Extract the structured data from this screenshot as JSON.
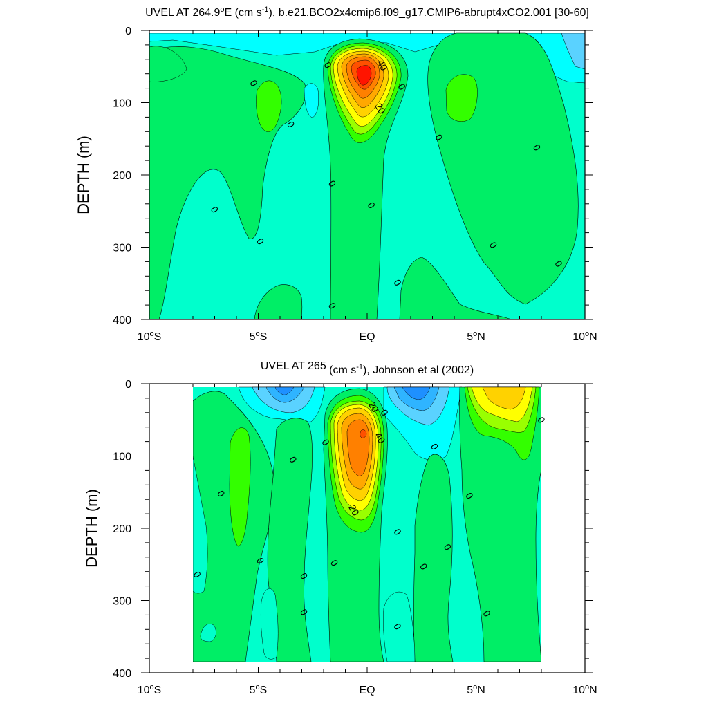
{
  "chart_data": [
    {
      "type": "heatmap",
      "title_prefix": "UVEL AT 264.9",
      "title_degree_sup": "o",
      "title_mid": "E (cm s",
      "title_unit_sup": "-1",
      "title_suffix": "), b.e21.BCO2x4cmip6.f09_g17.CMIP6-abrupt4xCO2.001 [30-60]",
      "ylabel": "DEPTH (m)",
      "xlabel": "",
      "xlim": [
        -10,
        10
      ],
      "ylim": [
        400,
        0
      ],
      "x_ticks": [
        {
          "value": -10,
          "num": "10",
          "sup": "o",
          "hemi": "S"
        },
        {
          "value": -5,
          "num": "5",
          "sup": "o",
          "hemi": "S"
        },
        {
          "value": 0,
          "num": "EQ",
          "sup": "",
          "hemi": ""
        },
        {
          "value": 5,
          "num": "5",
          "sup": "o",
          "hemi": "N"
        },
        {
          "value": 10,
          "num": "10",
          "sup": "o",
          "hemi": "N"
        }
      ],
      "y_ticks": [
        "0",
        "100",
        "200",
        "300",
        "400"
      ],
      "y_tick_values": [
        0,
        100,
        200,
        300,
        400
      ],
      "contour_interval": 5,
      "data_extent_lat": [
        -10,
        10
      ],
      "data_depth_range": [
        5,
        400
      ],
      "contour_labels": [
        {
          "text": "40",
          "lat": 0.7,
          "depth": 48
        },
        {
          "text": "20",
          "lat": 0.6,
          "depth": 108
        },
        {
          "text": "0",
          "lat": -5.2,
          "depth": 73
        },
        {
          "text": "0",
          "lat": -1.8,
          "depth": 48
        },
        {
          "text": "0",
          "lat": -3.5,
          "depth": 130
        },
        {
          "text": "0",
          "lat": 1.6,
          "depth": 78
        },
        {
          "text": "0",
          "lat": -7.0,
          "depth": 248
        },
        {
          "text": "0",
          "lat": -4.9,
          "depth": 292
        },
        {
          "text": "0",
          "lat": -1.6,
          "depth": 212
        },
        {
          "text": "0",
          "lat": 0.2,
          "depth": 242
        },
        {
          "text": "0",
          "lat": 3.3,
          "depth": 148
        },
        {
          "text": "0",
          "lat": 7.8,
          "depth": 162
        },
        {
          "text": "0",
          "lat": 5.8,
          "depth": 297
        },
        {
          "text": "0",
          "lat": 8.8,
          "depth": 323
        },
        {
          "text": "0",
          "lat": 1.4,
          "depth": 349
        },
        {
          "text": "0",
          "lat": -1.6,
          "depth": 381
        }
      ]
    },
    {
      "type": "heatmap",
      "title_prefix": "UVEL AT 265",
      "title_degree_sup": "",
      "title_mid": " (cm s",
      "title_unit_sup": "-1",
      "title_suffix": "), Johnson et al (2002)",
      "ylabel": "DEPTH (m)",
      "xlabel": "",
      "xlim": [
        -10,
        10
      ],
      "ylim": [
        400,
        0
      ],
      "x_ticks": [
        {
          "value": -10,
          "num": "10",
          "sup": "o",
          "hemi": "S"
        },
        {
          "value": -5,
          "num": "5",
          "sup": "o",
          "hemi": "S"
        },
        {
          "value": 0,
          "num": "EQ",
          "sup": "",
          "hemi": ""
        },
        {
          "value": 5,
          "num": "5",
          "sup": "o",
          "hemi": "N"
        },
        {
          "value": 10,
          "num": "10",
          "sup": "o",
          "hemi": "N"
        }
      ],
      "y_ticks": [
        "0",
        "100",
        "200",
        "300",
        "400"
      ],
      "y_tick_values": [
        0,
        100,
        200,
        300,
        400
      ],
      "contour_interval": 5,
      "data_extent_lat": [
        -8,
        8
      ],
      "data_depth_range": [
        5,
        385
      ],
      "contour_labels": [
        {
          "text": "20",
          "lat": 0.3,
          "depth": 32
        },
        {
          "text": "40",
          "lat": 0.6,
          "depth": 75
        },
        {
          "text": "20",
          "lat": -0.6,
          "depth": 175
        },
        {
          "text": "0",
          "lat": 0.8,
          "depth": 40
        },
        {
          "text": "0",
          "lat": 8.0,
          "depth": 50
        },
        {
          "text": "0",
          "lat": -1.9,
          "depth": 81
        },
        {
          "text": "0",
          "lat": 3.1,
          "depth": 87
        },
        {
          "text": "0",
          "lat": -3.4,
          "depth": 105
        },
        {
          "text": "0",
          "lat": -6.7,
          "depth": 152
        },
        {
          "text": "0",
          "lat": 4.7,
          "depth": 155
        },
        {
          "text": "0",
          "lat": 1.4,
          "depth": 205
        },
        {
          "text": "0",
          "lat": 3.7,
          "depth": 226
        },
        {
          "text": "0",
          "lat": -4.9,
          "depth": 245
        },
        {
          "text": "0",
          "lat": -1.5,
          "depth": 248
        },
        {
          "text": "0",
          "lat": 2.6,
          "depth": 253
        },
        {
          "text": "0",
          "lat": -7.8,
          "depth": 264
        },
        {
          "text": "0",
          "lat": -2.9,
          "depth": 266
        },
        {
          "text": "0",
          "lat": -2.9,
          "depth": 316
        },
        {
          "text": "0",
          "lat": 5.5,
          "depth": 318
        },
        {
          "text": "0",
          "lat": 1.4,
          "depth": 336
        }
      ]
    }
  ],
  "colors": {
    "background": "#ffffff",
    "axis": "#000000",
    "contour_line": "#000000",
    "levels": [
      "#1e90ff",
      "#2fb4ff",
      "#5ad2ff",
      "#00ffff",
      "#00ffcc",
      "#00ee66",
      "#33ff00",
      "#99ff00",
      "#ffff00",
      "#ffd200",
      "#ffa800",
      "#ff8000",
      "#ff5000",
      "#ff1400"
    ]
  }
}
